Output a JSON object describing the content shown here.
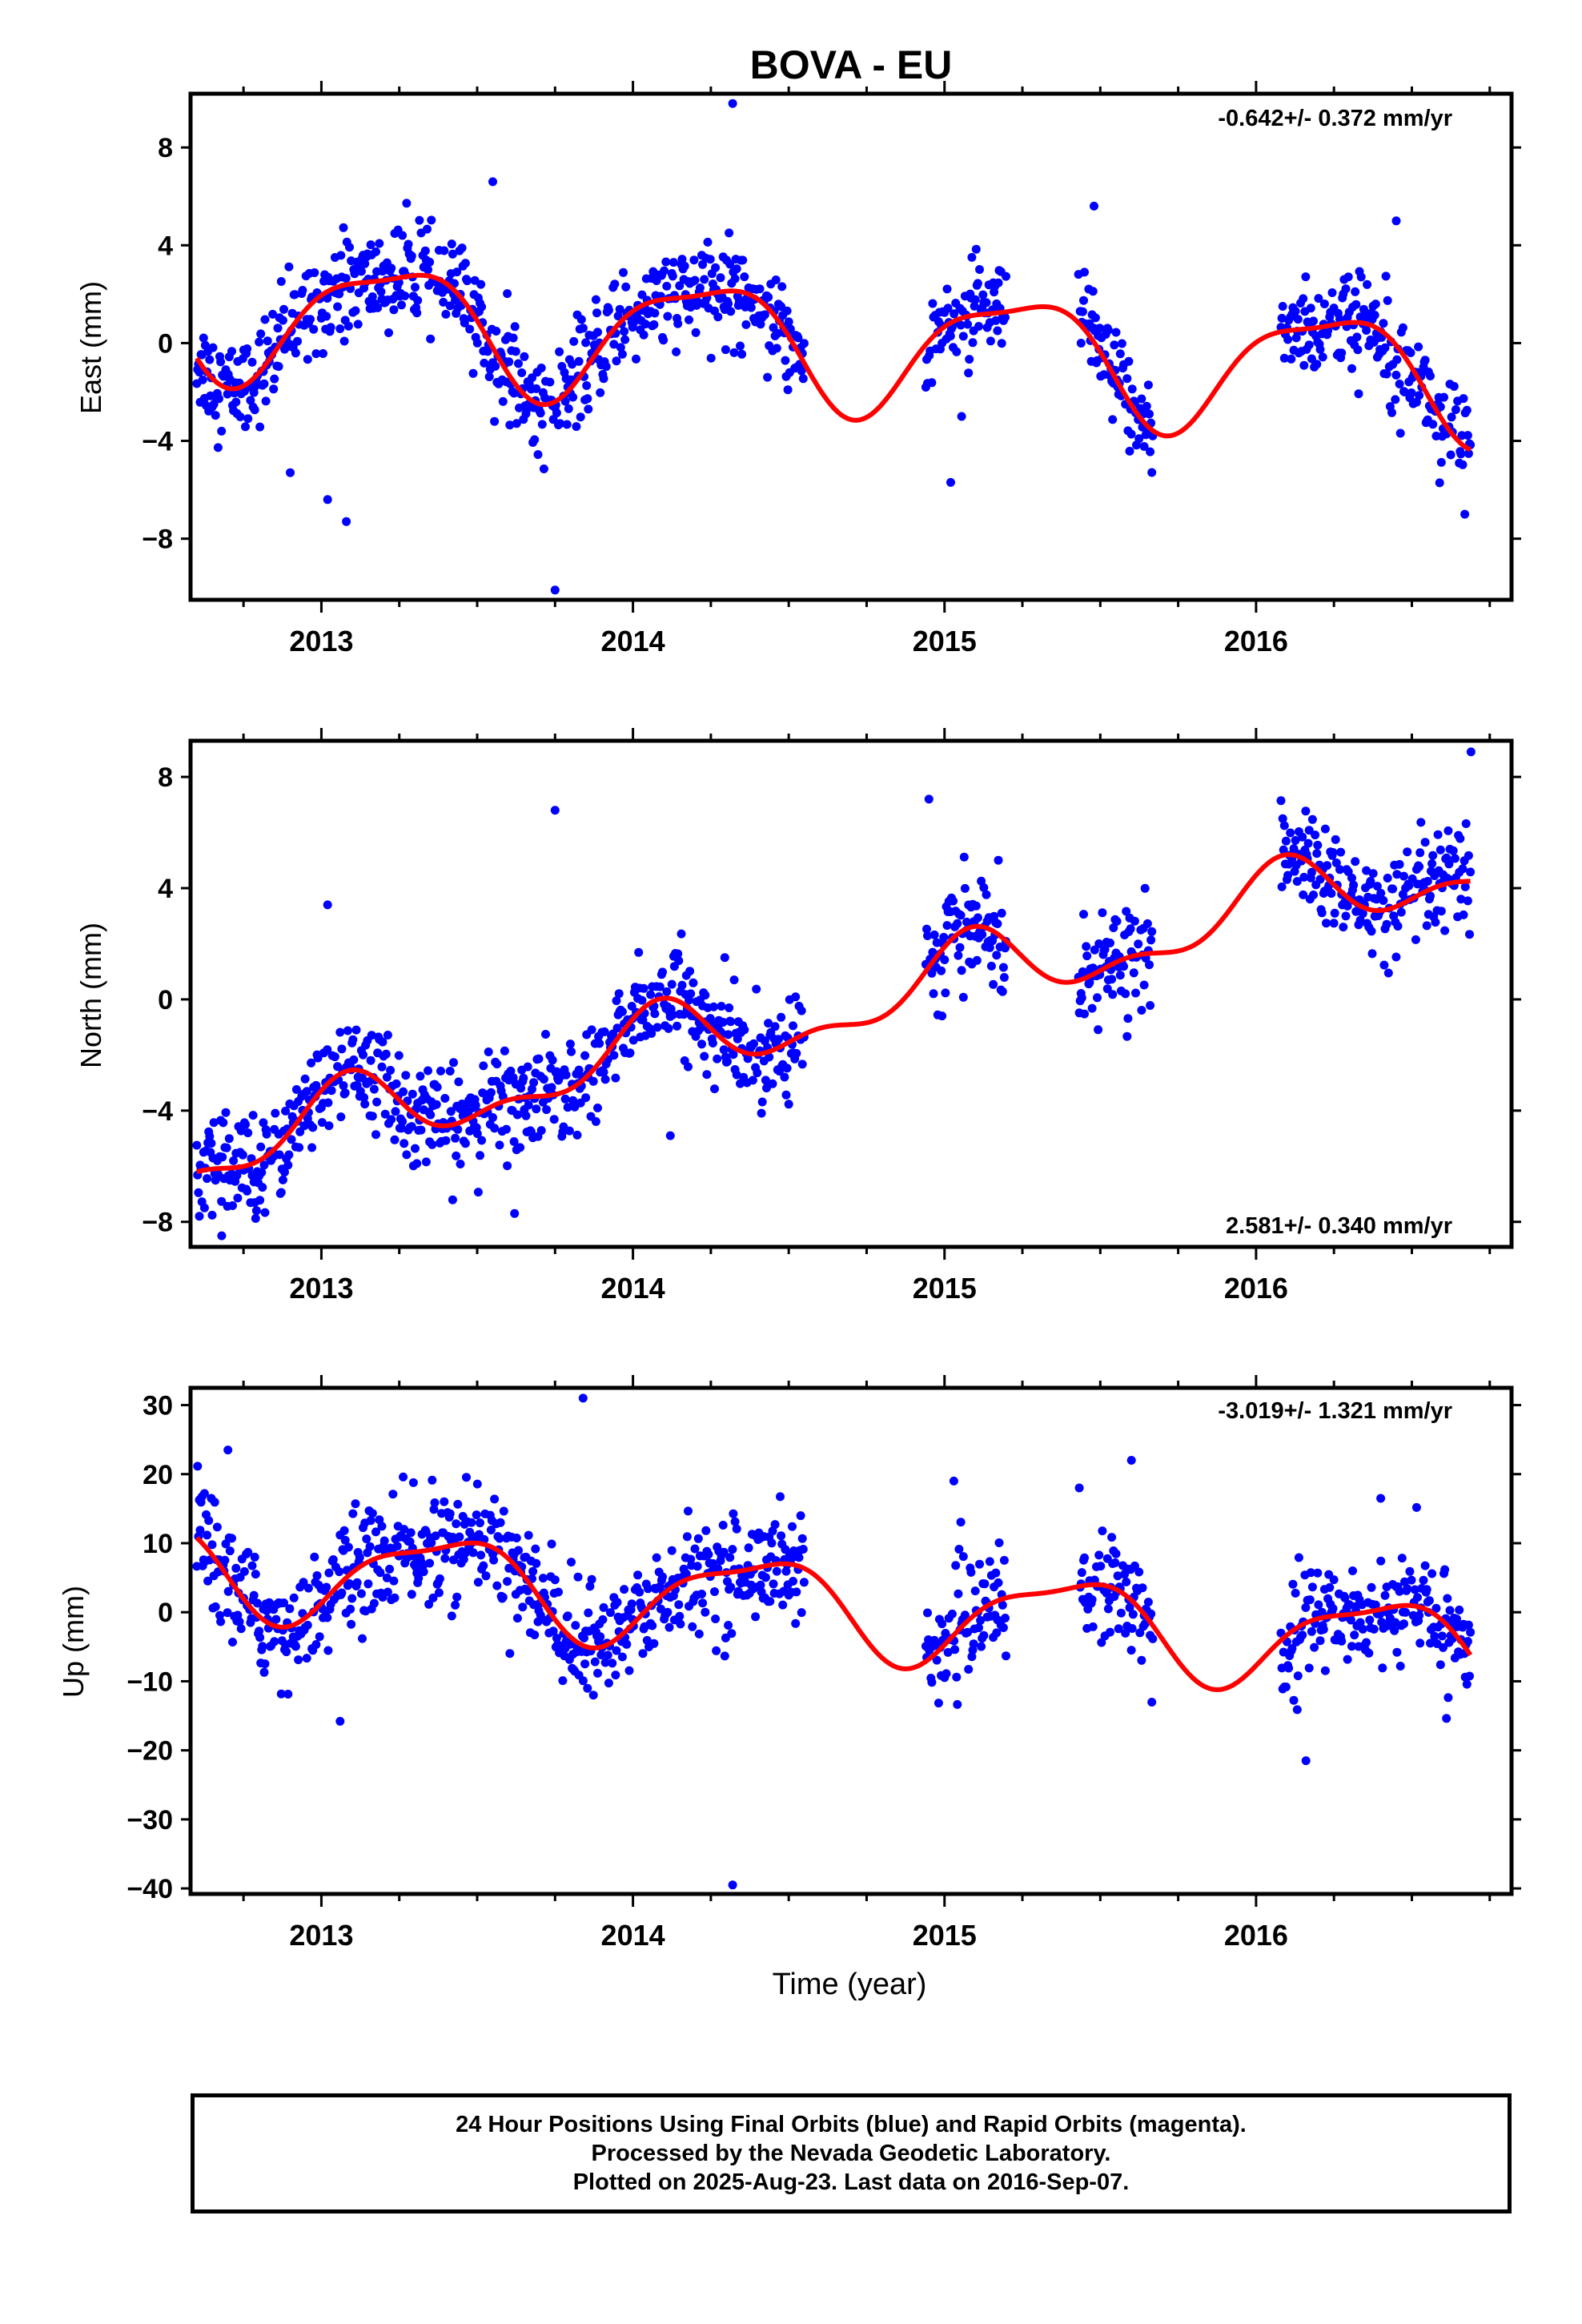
{
  "title": "BOVA - EU",
  "colors": {
    "points": "#0000ff",
    "fit": "#ff0000",
    "frame": "#000000"
  },
  "x_tick_labels": [
    "2013",
    "2014",
    "2015",
    "2016"
  ],
  "x_axis_label": "Time (year)",
  "footer": {
    "line1": "24 Hour Positions Using Final Orbits (blue) and Rapid Orbits (magenta).",
    "line2": "Processed by the Nevada Geodetic Laboratory.",
    "line3": "Plotted on 2025-Aug-23. Last data on 2016-Sep-07."
  },
  "chart_data": [
    {
      "type": "scatter",
      "ylabel": "East (mm)",
      "rate_text": "-0.642+/- 0.372 mm/yr",
      "rate_position": "top-right",
      "xlim": [
        2012.58,
        2016.82
      ],
      "ylim": [
        -10.5,
        10.2
      ],
      "yticks": [
        8,
        4,
        0,
        -4,
        -8
      ],
      "ytick_labels": [
        "8",
        "4",
        "0",
        "−4",
        "−8"
      ],
      "grid": false,
      "segments": [
        [
          2012.6,
          2014.55
        ],
        [
          2014.94,
          2015.2
        ],
        [
          2015.43,
          2015.67
        ],
        [
          2016.08,
          2016.69
        ]
      ],
      "fit": {
        "mean": 0.0,
        "trend": -0.642,
        "t0": 2014.6,
        "a1": 2.4,
        "p1": 0.15,
        "a2": 0.7,
        "p2": 2.2
      },
      "scatter_sd": 1.0,
      "outliers": [
        [
          2014.32,
          9.8
        ],
        [
          2013.75,
          -10.1
        ],
        [
          2013.08,
          -7.3
        ],
        [
          2013.02,
          -6.4
        ],
        [
          2012.9,
          -5.3
        ],
        [
          2016.67,
          -7.0
        ],
        [
          2015.02,
          -5.7
        ],
        [
          2013.55,
          6.6
        ],
        [
          2015.48,
          5.6
        ],
        [
          2016.45,
          5.0
        ]
      ]
    },
    {
      "type": "scatter",
      "ylabel": "North (mm)",
      "rate_text": "2.581+/- 0.340 mm/yr",
      "rate_position": "bottom-right",
      "xlim": [
        2012.58,
        2016.82
      ],
      "ylim": [
        -8.9,
        9.3
      ],
      "yticks": [
        8,
        4,
        0,
        -4,
        -8
      ],
      "ytick_labels": [
        "8",
        "4",
        "0",
        "−4",
        "−8"
      ],
      "grid": false,
      "segments": [
        [
          2012.6,
          2014.55
        ],
        [
          2014.94,
          2015.2
        ],
        [
          2015.43,
          2015.67
        ],
        [
          2016.08,
          2016.69
        ]
      ],
      "fit": {
        "mean": -0.45,
        "trend": 2.581,
        "t0": 2014.6,
        "a1": 1.2,
        "p1": 1.1,
        "a2": 0.6,
        "p2": 0.4
      },
      "scatter_sd": 0.9,
      "outliers": [
        [
          2013.75,
          6.8
        ],
        [
          2013.02,
          3.4
        ],
        [
          2013.62,
          -7.7
        ],
        [
          2014.12,
          -4.9
        ],
        [
          2014.95,
          7.2
        ],
        [
          2016.69,
          8.9
        ],
        [
          2012.68,
          -8.5
        ]
      ]
    },
    {
      "type": "scatter",
      "ylabel": "Up (mm)",
      "rate_text": "-3.019+/- 1.321 mm/yr",
      "rate_position": "top-right",
      "xlim": [
        2012.58,
        2016.82
      ],
      "ylim": [
        -40.8,
        32.5
      ],
      "yticks": [
        30,
        20,
        10,
        0,
        -10,
        -20,
        -30,
        -40
      ],
      "ytick_labels": [
        "30",
        "20",
        "10",
        "0",
        "−10",
        "−20",
        "−30",
        "−40"
      ],
      "grid": false,
      "segments": [
        [
          2012.6,
          2014.55
        ],
        [
          2014.94,
          2015.2
        ],
        [
          2015.43,
          2015.67
        ],
        [
          2016.08,
          2016.69
        ]
      ],
      "fit": {
        "mean": 1.0,
        "trend": -3.019,
        "t0": 2014.6,
        "a1": 6.5,
        "p1": -0.9,
        "a2": 2.0,
        "p2": 0.3
      },
      "scatter_sd": 4.0,
      "outliers": [
        [
          2013.84,
          31.0
        ],
        [
          2014.32,
          -39.5
        ],
        [
          2013.06,
          -15.8
        ],
        [
          2015.03,
          19.0
        ],
        [
          2015.6,
          22.0
        ],
        [
          2016.4,
          16.5
        ],
        [
          2016.16,
          -21.5
        ],
        [
          2012.7,
          23.5
        ]
      ]
    }
  ]
}
